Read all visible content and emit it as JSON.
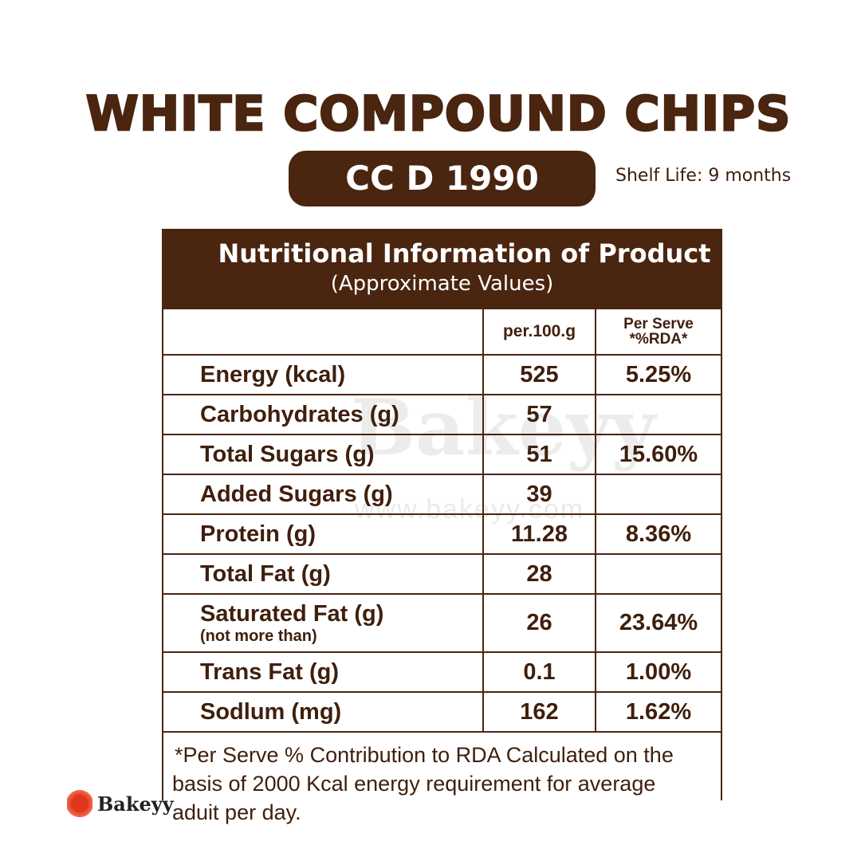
{
  "title": "WHITE COMPOUND CHIPS",
  "product_code": "CC D 1990",
  "shelf_life": "Shelf Life: 9 months",
  "table": {
    "heading": "Nutritional Information of Product",
    "subheading": "(Approximate Values)",
    "columns": [
      "",
      "per.100.g",
      "Per Serve",
      "*%RDA*"
    ],
    "rows": [
      {
        "label": "Energy (kcal)",
        "note": "",
        "per100g": "525",
        "rda": "5.25%"
      },
      {
        "label": "Carbohydrates (g)",
        "note": "",
        "per100g": "57",
        "rda": ""
      },
      {
        "label": "Total Sugars (g)",
        "note": "",
        "per100g": "51",
        "rda": "15.60%"
      },
      {
        "label": "Added Sugars (g)",
        "note": "",
        "per100g": "39",
        "rda": ""
      },
      {
        "label": "Protein (g)",
        "note": "",
        "per100g": "11.28",
        "rda": "8.36%"
      },
      {
        "label": "Total Fat (g)",
        "note": "",
        "per100g": "28",
        "rda": ""
      },
      {
        "label": "Saturated Fat (g)",
        "note": "(not more than)",
        "per100g": "26",
        "rda": "23.64%"
      },
      {
        "label": "Trans Fat (g)",
        "note": "",
        "per100g": "0.1",
        "rda": "1.00%"
      },
      {
        "label": "Sodlum (mg)",
        "note": "",
        "per100g": "162",
        "rda": "1.62%"
      }
    ],
    "footnote_line1": "*Per Serve % Contribution to RDA Calculated on the",
    "footnote_line2": "basis of 2000 Kcal energy requirement for average",
    "footnote_line3": "aduit per day."
  },
  "watermark": {
    "brand": "Bakeyy",
    "url": "www.bakeyy.com"
  },
  "logo": {
    "text": "Bakeyy"
  },
  "colors": {
    "brand_brown": "#4a250f",
    "logo_red": "#e0361b"
  }
}
